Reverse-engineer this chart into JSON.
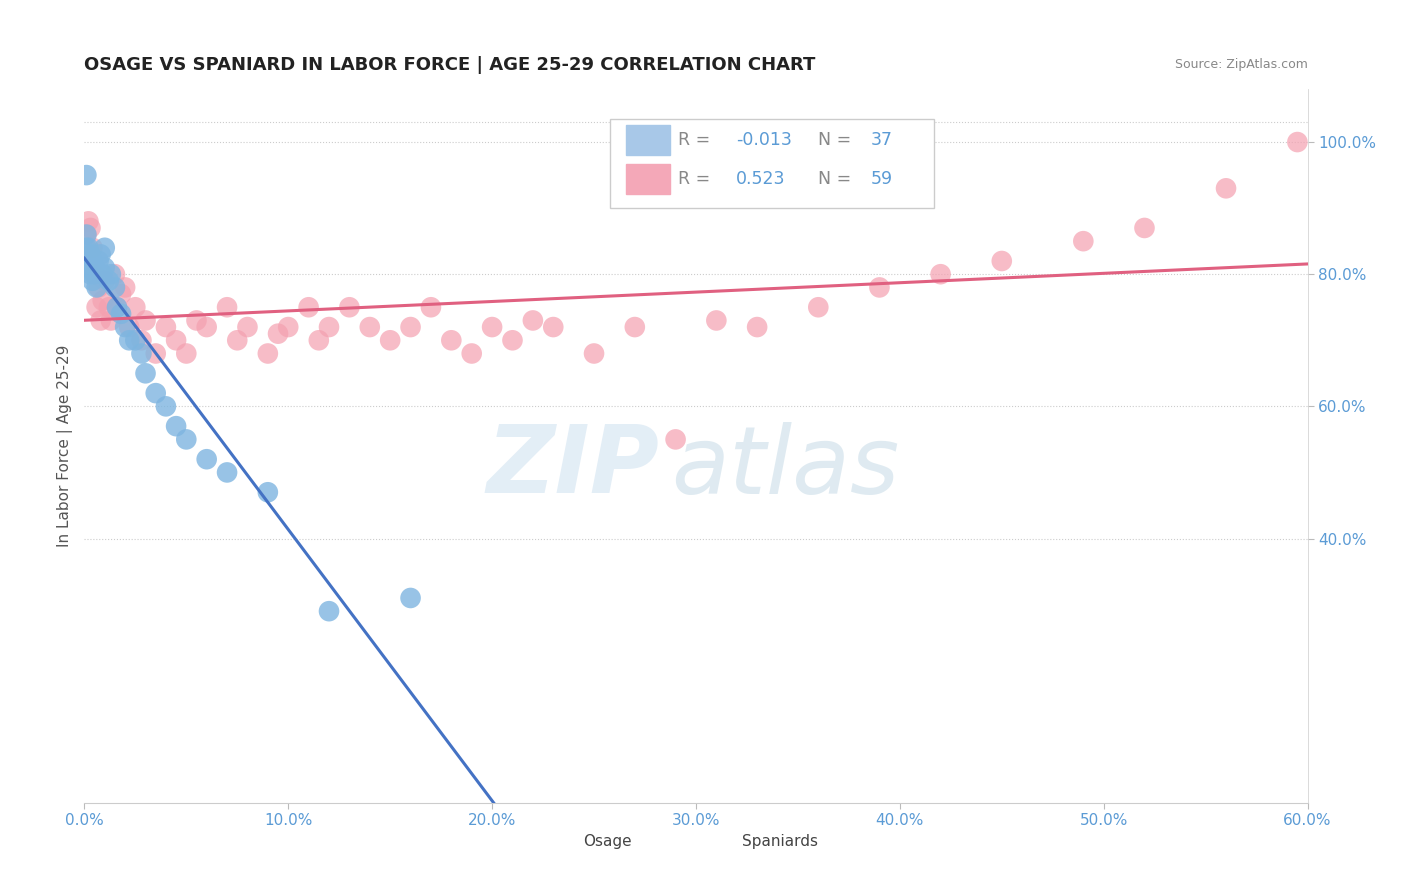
{
  "title": "OSAGE VS SPANIARD IN LABOR FORCE | AGE 25-29 CORRELATION CHART",
  "source": "Source: ZipAtlas.com",
  "ylabel": "In Labor Force | Age 25-29",
  "xlim": [
    0.0,
    0.6
  ],
  "ylim": [
    0.0,
    1.08
  ],
  "xticks": [
    0.0,
    0.1,
    0.2,
    0.3,
    0.4,
    0.5,
    0.6
  ],
  "xticklabels": [
    "0.0%",
    "10.0%",
    "20.0%",
    "30.0%",
    "40.0%",
    "50.0%",
    "60.0%"
  ],
  "yticks_right": [
    0.4,
    0.6,
    0.8,
    1.0
  ],
  "yticks_right_labels": [
    "40.0%",
    "60.0%",
    "80.0%",
    "100.0%"
  ],
  "background_color": "#ffffff",
  "grid_color": "#cccccc",
  "osage_color": "#7eb5e0",
  "spaniard_color": "#f4a0b0",
  "osage_R": -0.013,
  "osage_N": 37,
  "spaniard_R": 0.523,
  "spaniard_N": 59,
  "trend_osage_color": "#4472c4",
  "trend_spaniard_color": "#e06080",
  "osage_points_x": [
    0.001,
    0.001,
    0.001,
    0.002,
    0.002,
    0.002,
    0.003,
    0.003,
    0.004,
    0.004,
    0.005,
    0.005,
    0.006,
    0.007,
    0.008,
    0.009,
    0.01,
    0.01,
    0.012,
    0.013,
    0.015,
    0.016,
    0.018,
    0.02,
    0.022,
    0.025,
    0.028,
    0.03,
    0.035,
    0.04,
    0.045,
    0.05,
    0.06,
    0.07,
    0.09,
    0.12,
    0.16
  ],
  "osage_points_y": [
    0.95,
    0.86,
    0.84,
    0.84,
    0.82,
    0.81,
    0.83,
    0.8,
    0.82,
    0.79,
    0.81,
    0.8,
    0.78,
    0.82,
    0.83,
    0.8,
    0.84,
    0.81,
    0.79,
    0.8,
    0.78,
    0.75,
    0.74,
    0.72,
    0.7,
    0.7,
    0.68,
    0.65,
    0.62,
    0.6,
    0.57,
    0.55,
    0.52,
    0.5,
    0.47,
    0.29,
    0.31
  ],
  "spaniard_points_x": [
    0.001,
    0.002,
    0.003,
    0.004,
    0.005,
    0.006,
    0.007,
    0.008,
    0.009,
    0.01,
    0.012,
    0.013,
    0.015,
    0.016,
    0.018,
    0.02,
    0.022,
    0.025,
    0.028,
    0.03,
    0.035,
    0.04,
    0.045,
    0.05,
    0.055,
    0.06,
    0.07,
    0.075,
    0.08,
    0.09,
    0.095,
    0.1,
    0.11,
    0.115,
    0.12,
    0.13,
    0.14,
    0.15,
    0.16,
    0.17,
    0.18,
    0.19,
    0.2,
    0.21,
    0.22,
    0.23,
    0.25,
    0.27,
    0.29,
    0.31,
    0.33,
    0.36,
    0.39,
    0.42,
    0.45,
    0.49,
    0.52,
    0.56,
    0.595
  ],
  "spaniard_points_y": [
    0.86,
    0.88,
    0.87,
    0.84,
    0.8,
    0.75,
    0.78,
    0.73,
    0.76,
    0.79,
    0.75,
    0.73,
    0.8,
    0.75,
    0.77,
    0.78,
    0.72,
    0.75,
    0.7,
    0.73,
    0.68,
    0.72,
    0.7,
    0.68,
    0.73,
    0.72,
    0.75,
    0.7,
    0.72,
    0.68,
    0.71,
    0.72,
    0.75,
    0.7,
    0.72,
    0.75,
    0.72,
    0.7,
    0.72,
    0.75,
    0.7,
    0.68,
    0.72,
    0.7,
    0.73,
    0.72,
    0.68,
    0.72,
    0.55,
    0.73,
    0.72,
    0.75,
    0.78,
    0.8,
    0.82,
    0.85,
    0.87,
    0.93,
    1.0
  ],
  "watermark_zip": "ZIP",
  "watermark_atlas": "atlas",
  "legend_box_color_osage": "#a8c8e8",
  "legend_box_color_spaniard": "#f4a8b8",
  "trend_split_x": 0.3
}
